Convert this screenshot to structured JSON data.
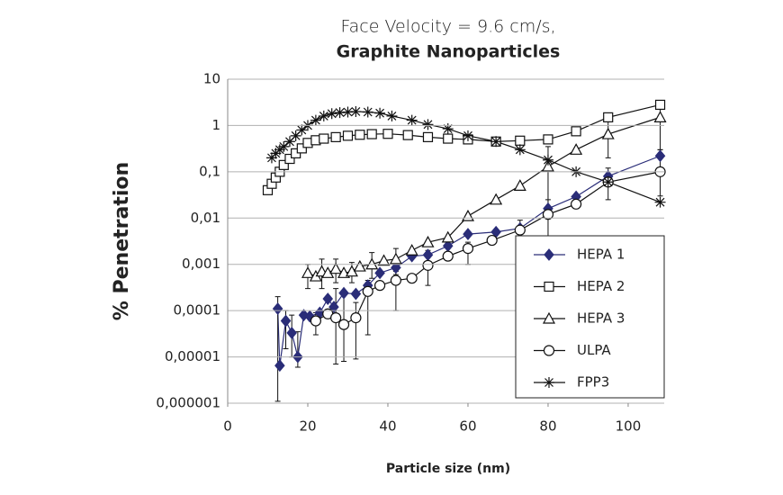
{
  "chart_data": {
    "type": "line",
    "title": "Face Velocity = 9.6 cm/s,",
    "subtitle": "Graphite Nanoparticles",
    "x_label": "Particle size (nm)",
    "y_label": "% Penetration",
    "log_y": true,
    "grid": true,
    "legend": "lower right",
    "xlim": [
      0,
      109
    ],
    "xticks": [
      0,
      20,
      40,
      60,
      80,
      100
    ],
    "ylim": [
      1e-06,
      10
    ],
    "yticks": [
      {
        "value": 1e-06,
        "label": "0,000001"
      },
      {
        "value": 1e-05,
        "label": "0,00001"
      },
      {
        "value": 0.0001,
        "label": "0,0001"
      },
      {
        "value": 0.001,
        "label": "0,001"
      },
      {
        "value": 0.01,
        "label": "0,01"
      },
      {
        "value": 0.1,
        "label": "0,1"
      },
      1,
      10
    ],
    "series": [
      {
        "name": "HEPA 1",
        "color": "#2a2d78",
        "marker": "diamond",
        "filled": true,
        "x": [
          12.5,
          13,
          14.5,
          16,
          17.5,
          19,
          20.5,
          23,
          25,
          26.5,
          29,
          32,
          35,
          38,
          42,
          46,
          50,
          55,
          60,
          67,
          73,
          80,
          87,
          95,
          108
        ],
        "values": [
          0.00011,
          6.5e-06,
          6e-05,
          3.3e-05,
          1e-05,
          8e-05,
          7.5e-05,
          9e-05,
          0.00018,
          0.00012,
          0.00024,
          0.00023,
          0.00035,
          0.00065,
          0.00085,
          0.0015,
          0.0016,
          0.0025,
          0.0045,
          0.005,
          0.006,
          0.016,
          0.029,
          0.08,
          0.22
        ],
        "errors": [
          [
            1.1e-06,
            0.0002
          ],
          null,
          [
            1.5e-05,
            0.0001
          ],
          [
            1e-05,
            8e-05
          ],
          [
            6e-06,
            3.5e-05
          ],
          null,
          null,
          null,
          null,
          null,
          null,
          null,
          null,
          null,
          null,
          null,
          null,
          null,
          null,
          null,
          null,
          null,
          null,
          null,
          null
        ]
      },
      {
        "name": "HEPA 2",
        "color": "#111111",
        "marker": "square",
        "filled": false,
        "x": [
          10,
          11,
          12,
          13,
          14,
          15.5,
          17,
          18.5,
          20,
          22,
          24,
          27,
          30,
          33,
          36,
          40,
          45,
          50,
          55,
          60,
          67,
          73,
          80,
          87,
          95,
          108
        ],
        "values": [
          0.04,
          0.055,
          0.075,
          0.1,
          0.14,
          0.19,
          0.25,
          0.32,
          0.42,
          0.48,
          0.52,
          0.56,
          0.6,
          0.63,
          0.65,
          0.66,
          0.62,
          0.56,
          0.52,
          0.5,
          0.45,
          0.47,
          0.5,
          0.75,
          1.5,
          2.8
        ],
        "errors": null
      },
      {
        "name": "HEPA 3",
        "color": "#111111",
        "marker": "triangle",
        "filled": false,
        "x": [
          20,
          22,
          23.5,
          25,
          27,
          29,
          31,
          33,
          36,
          39,
          42,
          46,
          50,
          55,
          60,
          67,
          73,
          80,
          87,
          95,
          108
        ],
        "values": [
          0.00065,
          0.00055,
          0.0007,
          0.00065,
          0.0008,
          0.00065,
          0.0007,
          0.0009,
          0.001,
          0.0012,
          0.0013,
          0.002,
          0.003,
          0.0038,
          0.011,
          0.025,
          0.05,
          0.13,
          0.3,
          0.65,
          1.5
        ],
        "errors": [
          [
            0.0003,
            0.001
          ],
          null,
          [
            0.0003,
            0.0013
          ],
          null,
          [
            0.0004,
            0.0013
          ],
          null,
          [
            0.0004,
            0.0011
          ],
          null,
          [
            0.0005,
            0.0018
          ],
          null,
          [
            0.0006,
            0.0022
          ],
          null,
          null,
          null,
          null,
          null,
          null,
          [
            0.012,
            0.35
          ],
          null,
          [
            0.2,
            1.2
          ],
          [
            0.3,
            3.5
          ]
        ]
      },
      {
        "name": "ULPA",
        "color": "#111111",
        "marker": "circle",
        "filled": false,
        "x": [
          22,
          25,
          27,
          29,
          32,
          35,
          38,
          42,
          46,
          50,
          55,
          60,
          66,
          73,
          80,
          87,
          95,
          108
        ],
        "values": [
          6e-05,
          8.5e-05,
          7e-05,
          5e-05,
          7e-05,
          0.00026,
          0.00035,
          0.00045,
          0.0005,
          0.00095,
          0.0015,
          0.0022,
          0.0033,
          0.0055,
          0.012,
          0.02,
          0.06,
          0.1
        ],
        "errors": [
          [
            3e-05,
            9e-05
          ],
          null,
          [
            7e-06,
            0.0003
          ],
          [
            8e-06,
            0.00025
          ],
          [
            9e-06,
            0.00015
          ],
          [
            3e-05,
            0.00045
          ],
          null,
          [
            0.0001,
            0.0007
          ],
          null,
          [
            0.00035,
            0.002
          ],
          null,
          [
            0.001,
            0.003
          ],
          null,
          [
            0.004,
            0.009
          ],
          [
            0.004,
            0.025
          ],
          null,
          [
            0.025,
            0.12
          ],
          [
            0.03,
            0.3
          ]
        ]
      },
      {
        "name": "FPP3",
        "color": "#111111",
        "marker": "asterisk",
        "filled": false,
        "x": [
          11,
          12,
          13,
          14,
          15.5,
          17,
          18.5,
          20,
          22,
          24,
          26,
          28,
          30,
          32,
          35,
          38,
          41,
          46,
          50,
          55,
          60,
          67,
          73,
          80,
          87,
          95,
          108
        ],
        "values": [
          0.2,
          0.25,
          0.3,
          0.35,
          0.45,
          0.6,
          0.8,
          1.0,
          1.3,
          1.6,
          1.8,
          1.9,
          1.95,
          2.0,
          1.95,
          1.85,
          1.6,
          1.3,
          1.05,
          0.85,
          0.6,
          0.45,
          0.3,
          0.18,
          0.1,
          0.06,
          0.022
        ],
        "errors": null
      }
    ]
  }
}
